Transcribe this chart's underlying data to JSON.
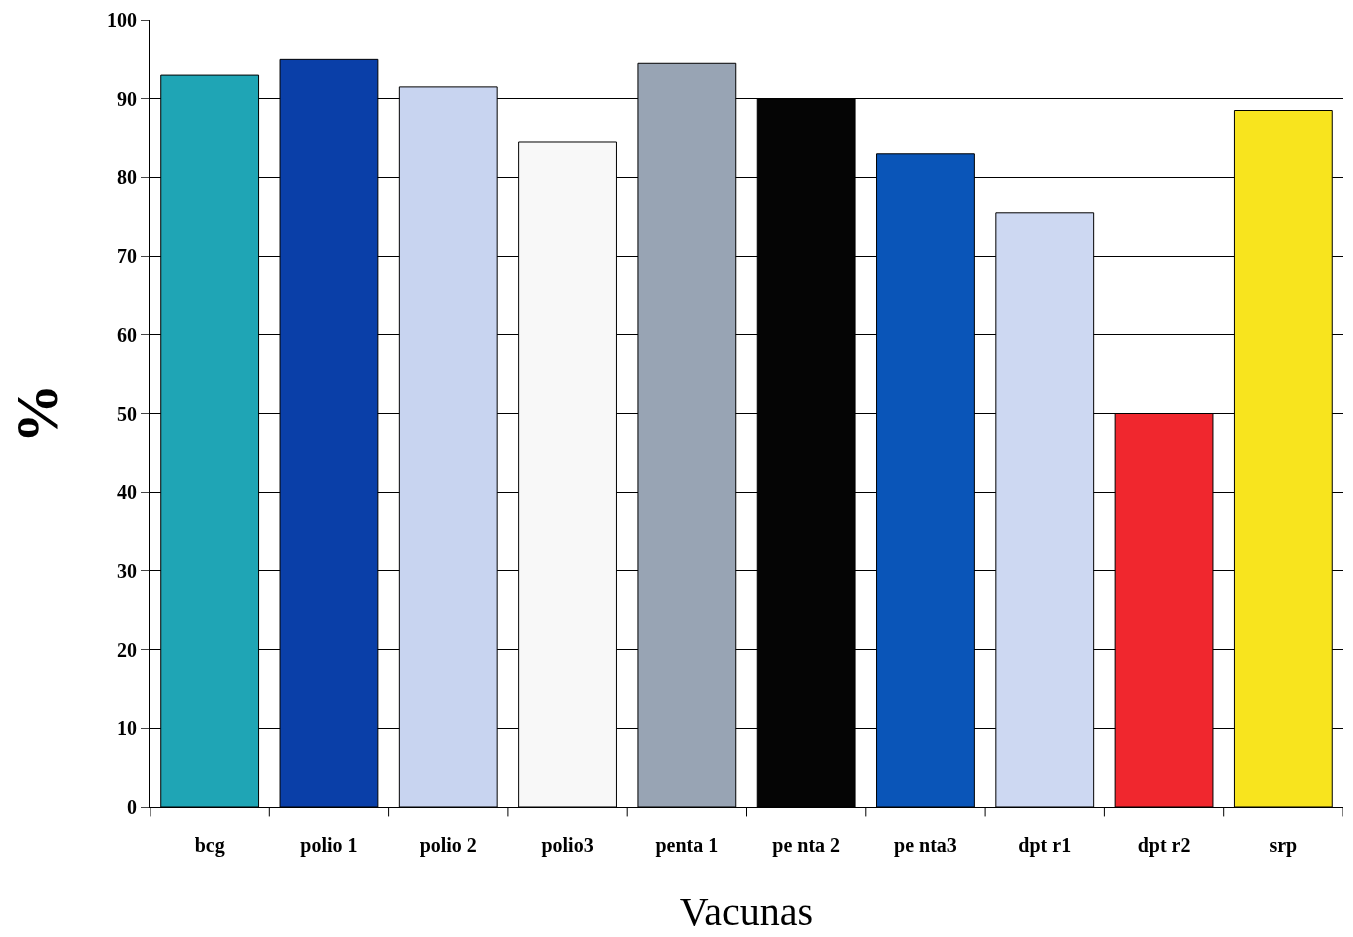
{
  "chart_data": {
    "type": "bar",
    "xlabel": "Vacunas",
    "ylabel": "%",
    "categories": [
      "bcg",
      "polio 1",
      "polio 2",
      "polio3",
      "penta 1",
      "pe nta 2",
      "pe nta3",
      "dpt r1",
      "dpt r2",
      "srp"
    ],
    "values": [
      93,
      95,
      91.5,
      84.5,
      94.5,
      90,
      83,
      75.5,
      50,
      88.5
    ],
    "colors": [
      "#1fa5b5",
      "#0a3fa8",
      "#c8d4f0",
      "#f8f8f8",
      "#98a4b4",
      "#050505",
      "#0a55b8",
      "#cdd8f2",
      "#f0272e",
      "#f8e41e"
    ],
    "ylim": [
      0,
      100
    ],
    "yticks": [
      0,
      10,
      20,
      30,
      40,
      50,
      60,
      70,
      80,
      90,
      100
    ],
    "grid": "y"
  }
}
